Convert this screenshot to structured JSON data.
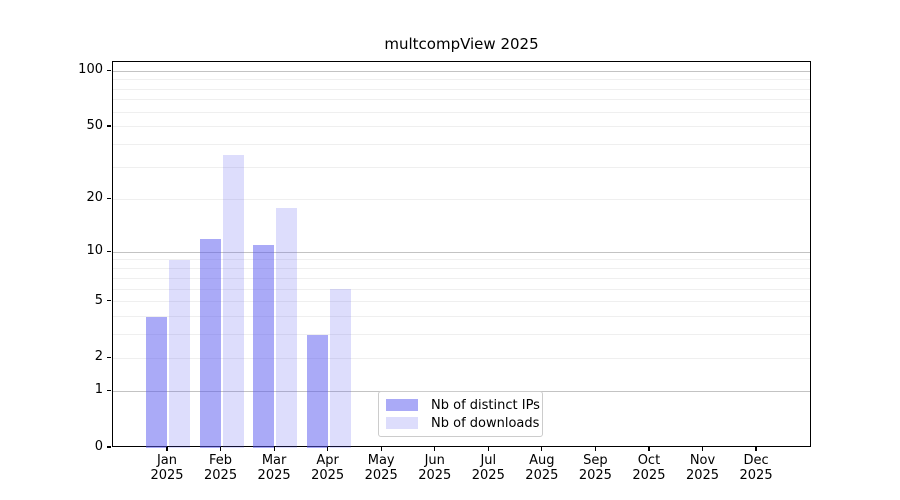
{
  "chart_data": {
    "type": "bar",
    "title": "multcompView 2025",
    "categories": [
      "Jan",
      "Feb",
      "Mar",
      "Apr",
      "May",
      "Jun",
      "Jul",
      "Aug",
      "Sep",
      "Oct",
      "Nov",
      "Dec"
    ],
    "year_label": "2025",
    "series": [
      {
        "name": "Nb of distinct IPs",
        "color": "rgba(85,85,240,0.5)",
        "solid_color": "#aaaaf7",
        "values": [
          4,
          12,
          11,
          3,
          null,
          null,
          null,
          null,
          null,
          null,
          null,
          null
        ]
      },
      {
        "name": "Nb of downloads",
        "color": "rgba(85,85,240,0.2)",
        "solid_color": "#dcdcfb",
        "values": [
          9,
          35,
          18,
          6,
          null,
          null,
          null,
          null,
          null,
          null,
          null,
          null
        ]
      }
    ],
    "y_axis": {
      "scale": "log1p",
      "tick_labels": [
        0,
        1,
        2,
        5,
        10,
        20,
        50,
        100
      ],
      "ylim": [
        0,
        112
      ],
      "major_gridlines": [
        1,
        10,
        100
      ],
      "minor_gridlines": [
        2,
        3,
        4,
        5,
        6,
        7,
        8,
        9,
        20,
        30,
        40,
        50,
        60,
        70,
        80,
        90
      ]
    },
    "legend": {
      "position": "lower center",
      "entries": [
        "Nb of distinct IPs",
        "Nb of downloads"
      ]
    },
    "grid": true
  },
  "colors": {
    "background": "#ffffff",
    "axis": "#000000",
    "major_grid": "#c3c3c3",
    "minor_grid": "#efefef",
    "legend_border": "#cccccc",
    "text": "#000000"
  }
}
